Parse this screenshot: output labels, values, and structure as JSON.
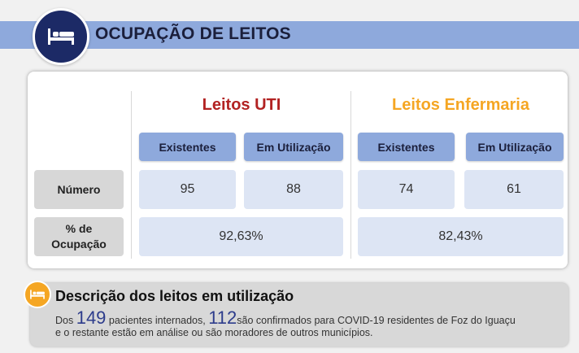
{
  "header": {
    "title": "OCUPAÇÃO DE LEITOS",
    "icon": "bed-icon"
  },
  "sections": {
    "uti": {
      "title": "Leitos UTI",
      "color": "#b22222",
      "col_existentes": "Existentes",
      "col_utilizacao": "Em Utilização",
      "existentes": "95",
      "utilizacao": "88",
      "ocupacao": "92,63%"
    },
    "enfermaria": {
      "title": "Leitos Enfermaria",
      "color": "#f5a623",
      "col_existentes": "Existentes",
      "col_utilizacao": "Em Utilização",
      "existentes": "74",
      "utilizacao": "61",
      "ocupacao": "82,43%"
    }
  },
  "rows": {
    "numero": "Número",
    "ocupacao_line1": "% de",
    "ocupacao_line2": "Ocupação"
  },
  "description": {
    "title": "Descrição dos leitos em utilização",
    "icon": "bed-icon",
    "text_prefix": "Dos ",
    "internados": "149",
    "text_mid": " pacientes internados, ",
    "confirmados": "112",
    "text_line1_end": "são confirmados para COVID-19 residentes de Foz do Iguaçu",
    "text_line2": "e o restante estão em análise ou são moradores de outros municípios."
  }
}
